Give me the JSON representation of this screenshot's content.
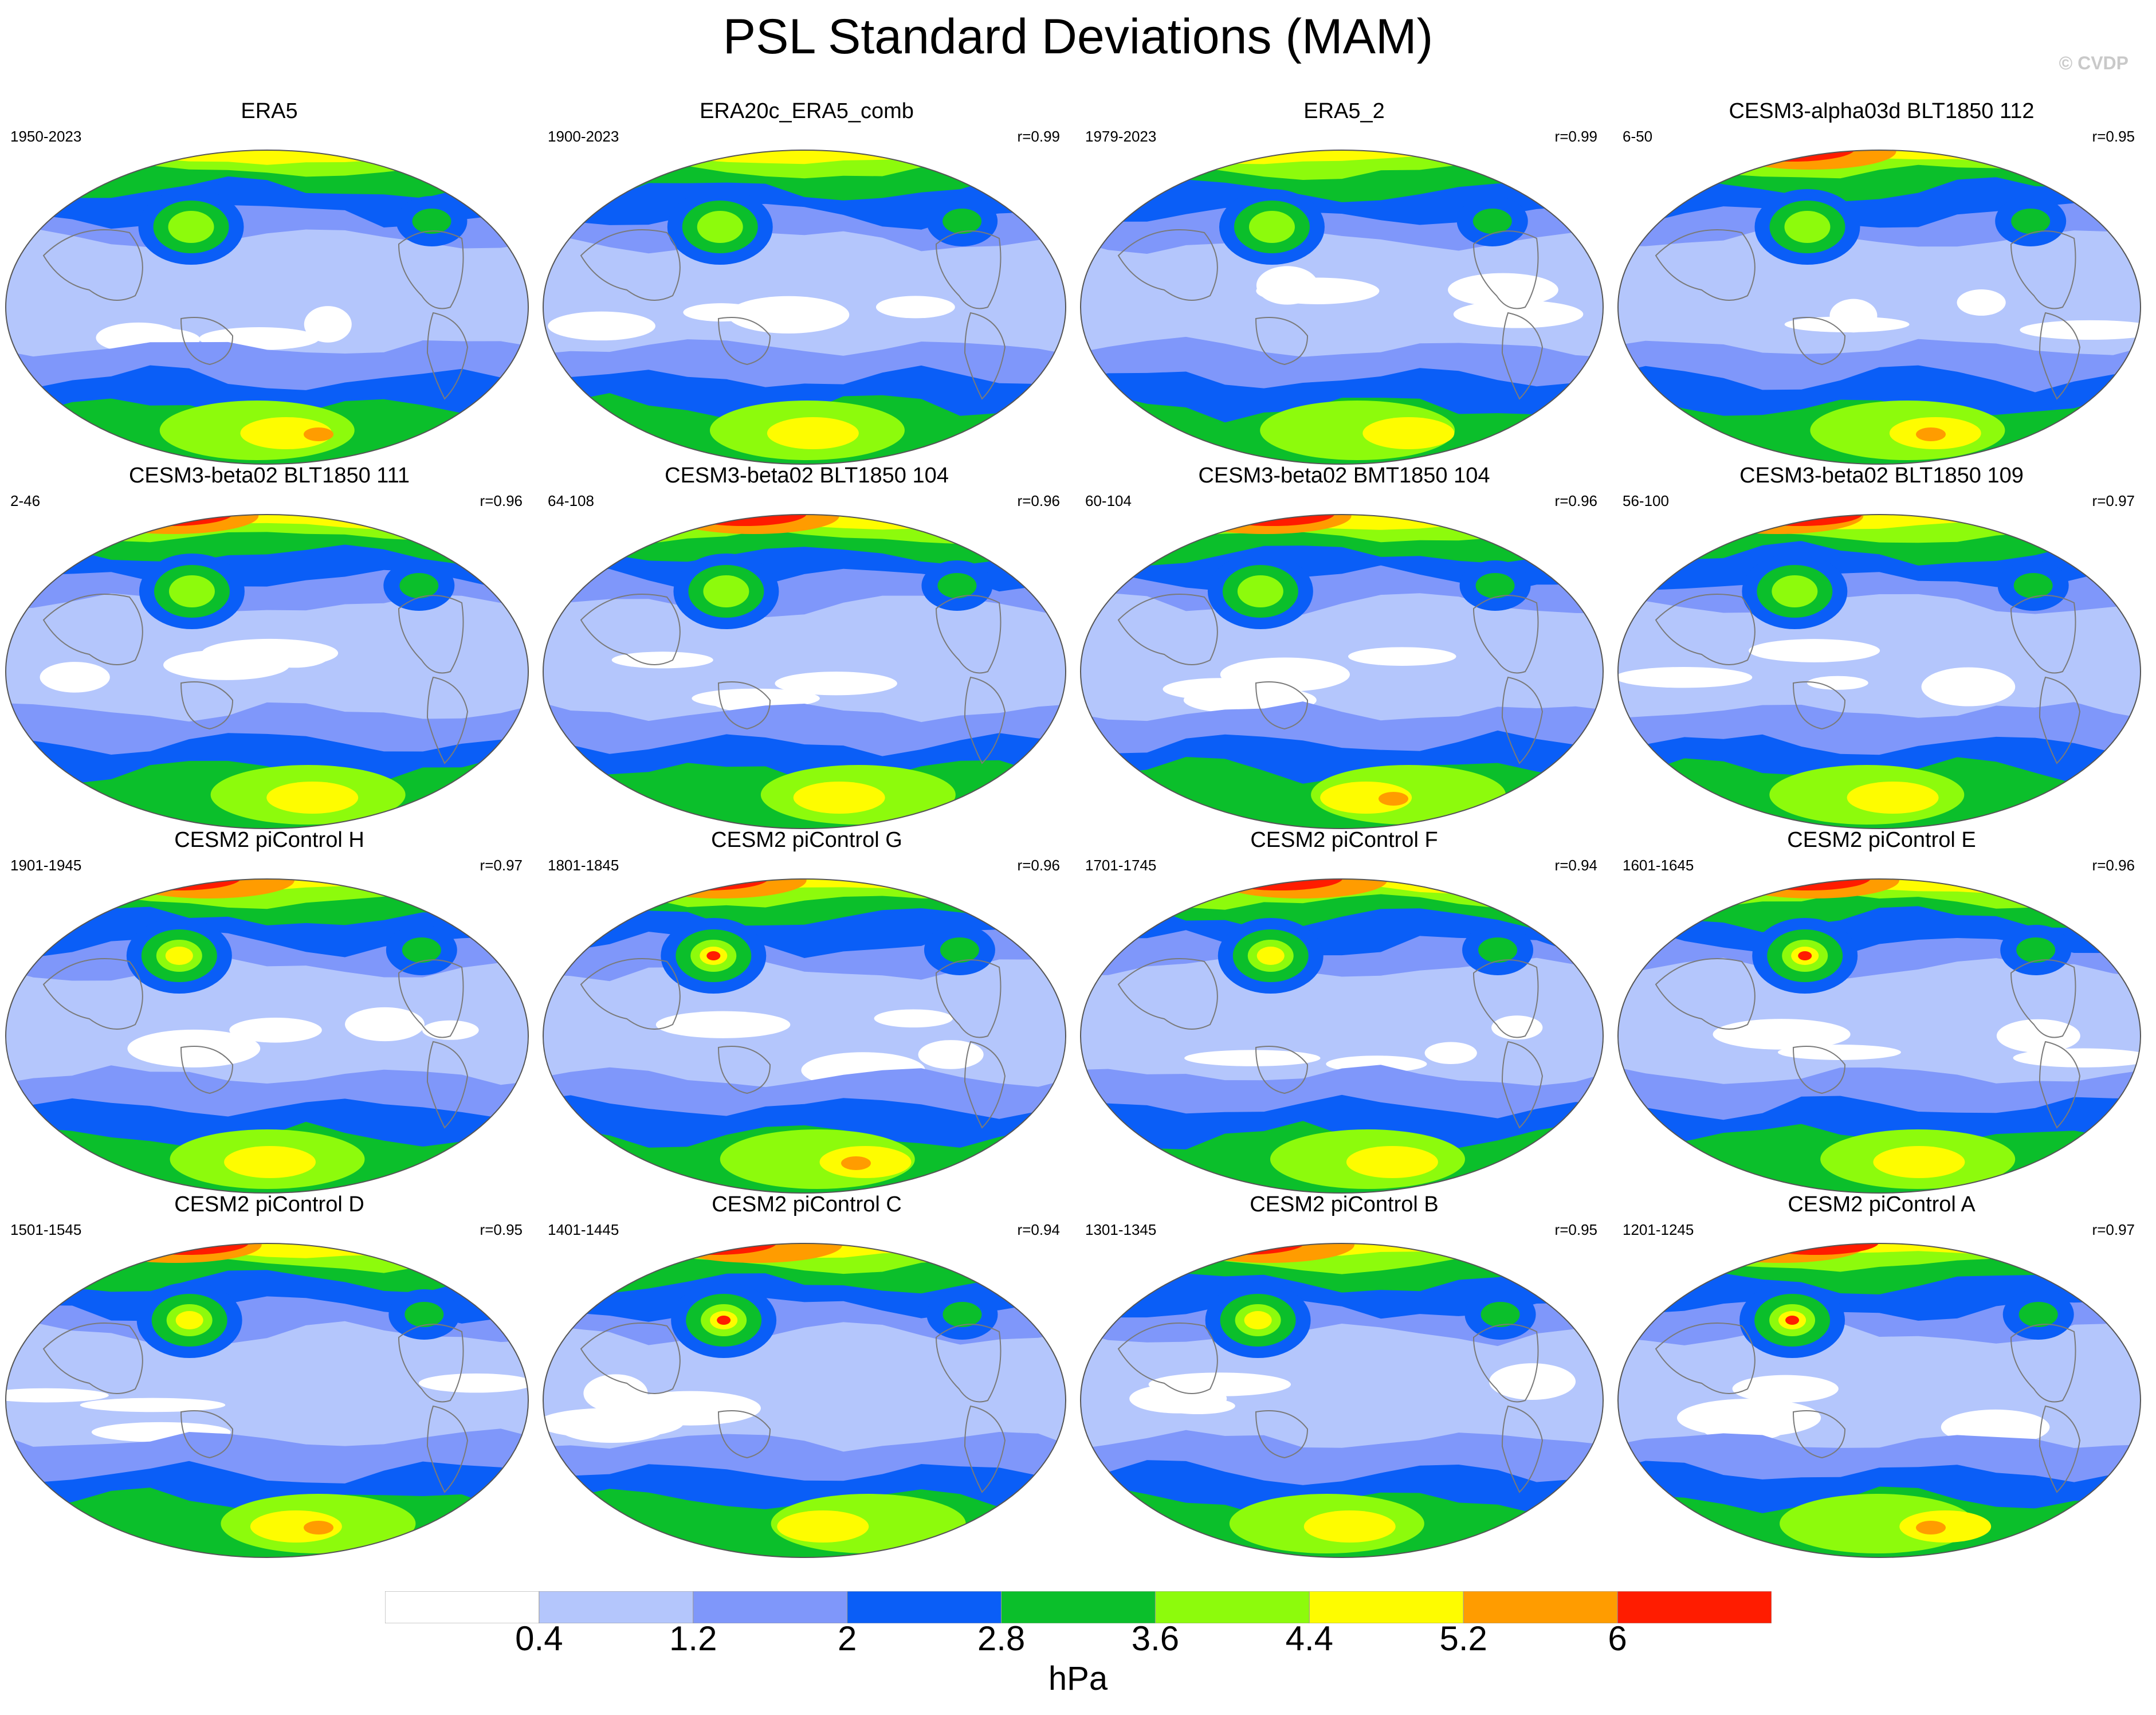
{
  "title": "PSL Standard Deviations (MAM)",
  "watermark": "© CVDP",
  "units": "hPa",
  "colors": {
    "bins": [
      "#ffffff",
      "#b4c6fc",
      "#7f97fa",
      "#0a5ef7",
      "#0bbf2b",
      "#8dfb0c",
      "#fefc00",
      "#ff9c00",
      "#ff1c00"
    ],
    "coast": "#7a7a7a",
    "outline": "#555555"
  },
  "levels": [
    "0.4",
    "1.2",
    "2",
    "2.8",
    "3.6",
    "4.4",
    "5.2",
    "6"
  ],
  "panels": [
    {
      "title": "ERA5",
      "years": "1950-2023",
      "r": ""
    },
    {
      "title": "ERA20c_ERA5_comb",
      "years": "1900-2023",
      "r": "r=0.99"
    },
    {
      "title": "ERA5_2",
      "years": "1979-2023",
      "r": "r=0.99"
    },
    {
      "title": "CESM3-alpha03d BLT1850 112",
      "years": "6-50",
      "r": "r=0.95"
    },
    {
      "title": "CESM3-beta02 BLT1850 111",
      "years": "2-46",
      "r": "r=0.96"
    },
    {
      "title": "CESM3-beta02 BLT1850 104",
      "years": "64-108",
      "r": "r=0.96"
    },
    {
      "title": "CESM3-beta02 BMT1850 104",
      "years": "60-104",
      "r": "r=0.96"
    },
    {
      "title": "CESM3-beta02 BLT1850 109",
      "years": "56-100",
      "r": "r=0.97"
    },
    {
      "title": "CESM2 piControl H",
      "years": "1901-1945",
      "r": "r=0.97"
    },
    {
      "title": "CESM2 piControl G",
      "years": "1801-1845",
      "r": "r=0.96"
    },
    {
      "title": "CESM2 piControl F",
      "years": "1701-1745",
      "r": "r=0.94"
    },
    {
      "title": "CESM2 piControl E",
      "years": "1601-1645",
      "r": "r=0.96"
    },
    {
      "title": "CESM2 piControl D",
      "years": "1501-1545",
      "r": "r=0.95"
    },
    {
      "title": "CESM2 piControl C",
      "years": "1401-1445",
      "r": "r=0.94"
    },
    {
      "title": "CESM2 piControl B",
      "years": "1301-1345",
      "r": "r=0.95"
    },
    {
      "title": "CESM2 piControl A",
      "years": "1201-1245",
      "r": "r=0.97"
    }
  ]
}
